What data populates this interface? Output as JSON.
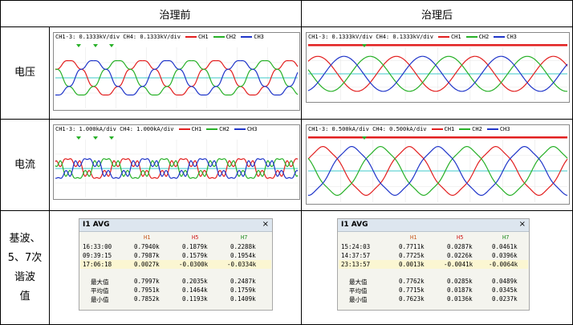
{
  "table": {
    "col_before": "治理前",
    "col_after": "治理后",
    "row_voltage": "电压",
    "row_current": "电流",
    "row_harmonic": "基波、\n5、7次\n谐波\n值"
  },
  "colors": {
    "ch1": "#e21f1f",
    "ch2": "#27b027",
    "ch3": "#1f35c9",
    "ch4": "#3cc8c8"
  },
  "scopes": {
    "v_before": {
      "scale": "CH1-3: 0.1333kV/div  CH4: 0.1333kV/div",
      "ch1": "CH1",
      "ch2": "CH2",
      "ch3": "CH3"
    },
    "v_after": {
      "scale": "CH1-3: 0.1333kV/div  CH4: 0.1333kV/div",
      "ch1": "CH1",
      "ch2": "CH2",
      "ch3": "CH3"
    },
    "i_before": {
      "scale": "CH1-3:  1.000kA/div  CH4:  1.000kA/div",
      "ch1": "CH1",
      "ch2": "CH2",
      "ch3": "CH3"
    },
    "i_after": {
      "scale": "CH1-3: 0.500kA/div  CH4: 0.500kA/div",
      "ch1": "CH1",
      "ch2": "CH2",
      "ch3": "CH3"
    }
  },
  "panels": {
    "before": {
      "title": "I1 AVG",
      "close": "×",
      "headers": [
        "H1",
        "H5",
        "H7"
      ],
      "rows": [
        {
          "time": "16:33:00",
          "h1": "0.7940k",
          "h5": "0.1879k",
          "h7": "0.2288k"
        },
        {
          "time": "09:39:15",
          "h1": "0.7987k",
          "h5": "0.1579k",
          "h7": "0.1954k"
        },
        {
          "time": "17:06:18",
          "h1": "0.0027k",
          "h5": "-0.0300k",
          "h7": "-0.0334k"
        }
      ],
      "stats": [
        {
          "label": "最大值",
          "h1": "0.7997k",
          "h5": "0.2035k",
          "h7": "0.2487k"
        },
        {
          "label": "平均值",
          "h1": "0.7951k",
          "h5": "0.1464k",
          "h7": "0.1759k"
        },
        {
          "label": "最小值",
          "h1": "0.7852k",
          "h5": "0.1193k",
          "h7": "0.1409k"
        }
      ]
    },
    "after": {
      "title": "I1 AVG",
      "close": "×",
      "headers": [
        "H1",
        "H5",
        "H7"
      ],
      "rows": [
        {
          "time": "15:24:03",
          "h1": "0.7711k",
          "h5": "0.0287k",
          "h7": "0.0461k"
        },
        {
          "time": "14:37:57",
          "h1": "0.7725k",
          "h5": "0.0226k",
          "h7": "0.0396k"
        },
        {
          "time": "23:13:57",
          "h1": "0.0013k",
          "h5": "-0.0041k",
          "h7": "-0.0064k"
        }
      ],
      "stats": [
        {
          "label": "最大值",
          "h1": "0.7762k",
          "h5": "0.0285k",
          "h7": "0.0489k"
        },
        {
          "label": "平均值",
          "h1": "0.7715k",
          "h5": "0.0187k",
          "h7": "0.0345k"
        },
        {
          "label": "最小值",
          "h1": "0.7623k",
          "h5": "0.0136k",
          "h7": "0.0237k"
        }
      ]
    }
  }
}
